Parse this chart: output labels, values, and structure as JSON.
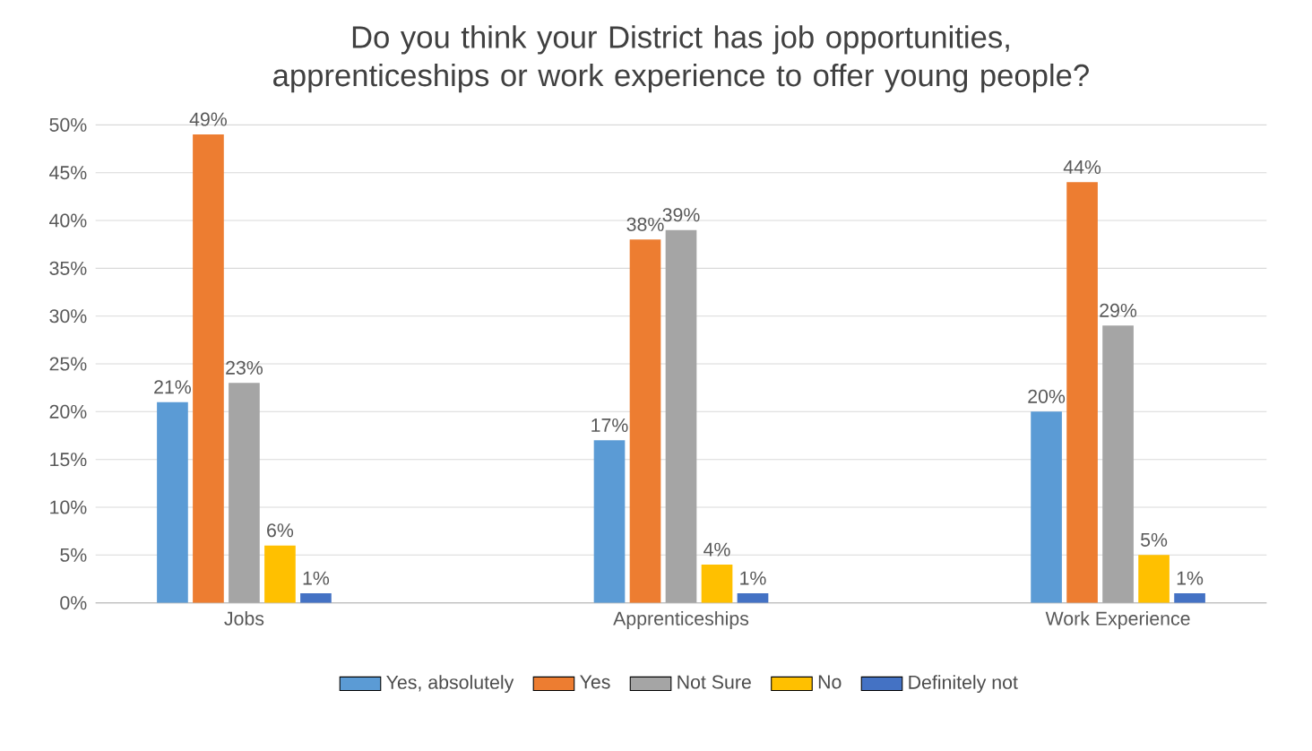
{
  "chart_data": {
    "type": "bar",
    "title": "Do you think your District has job opportunities, apprenticeships or work experience to offer young people?",
    "categories": [
      "Jobs",
      "Apprenticeships",
      "Work Experience"
    ],
    "series": [
      {
        "name": "Yes, absolutely",
        "color": "#5b9bd5",
        "values": [
          21,
          17,
          20
        ],
        "value_labels": [
          "21%",
          "17%",
          "20%"
        ]
      },
      {
        "name": "Yes",
        "color": "#ed7d31",
        "values": [
          49,
          38,
          44
        ],
        "value_labels": [
          "49%",
          "38%",
          "44%"
        ]
      },
      {
        "name": "Not Sure",
        "color": "#a5a5a5",
        "values": [
          23,
          39,
          29
        ],
        "value_labels": [
          "23%",
          "39%",
          "29%"
        ]
      },
      {
        "name": "No",
        "color": "#ffc000",
        "values": [
          6,
          4,
          5
        ],
        "value_labels": [
          "6%",
          "4%",
          "5%"
        ]
      },
      {
        "name": "Definitely not",
        "color": "#4472c4",
        "values": [
          1,
          1,
          1
        ],
        "value_labels": [
          "1%",
          "1%",
          "1%"
        ]
      }
    ],
    "ylim": [
      0,
      50
    ],
    "yticks": [
      {
        "value": 0,
        "label": "0%"
      },
      {
        "value": 5,
        "label": "5%"
      },
      {
        "value": 10,
        "label": "10%"
      },
      {
        "value": 15,
        "label": "15%"
      },
      {
        "value": 20,
        "label": "20%"
      },
      {
        "value": 25,
        "label": "25%"
      },
      {
        "value": 30,
        "label": "30%"
      },
      {
        "value": 35,
        "label": "35%"
      },
      {
        "value": 40,
        "label": "40%"
      },
      {
        "value": 45,
        "label": "45%"
      },
      {
        "value": 50,
        "label": "50%"
      }
    ],
    "grid": "y",
    "legend": "bottom"
  }
}
